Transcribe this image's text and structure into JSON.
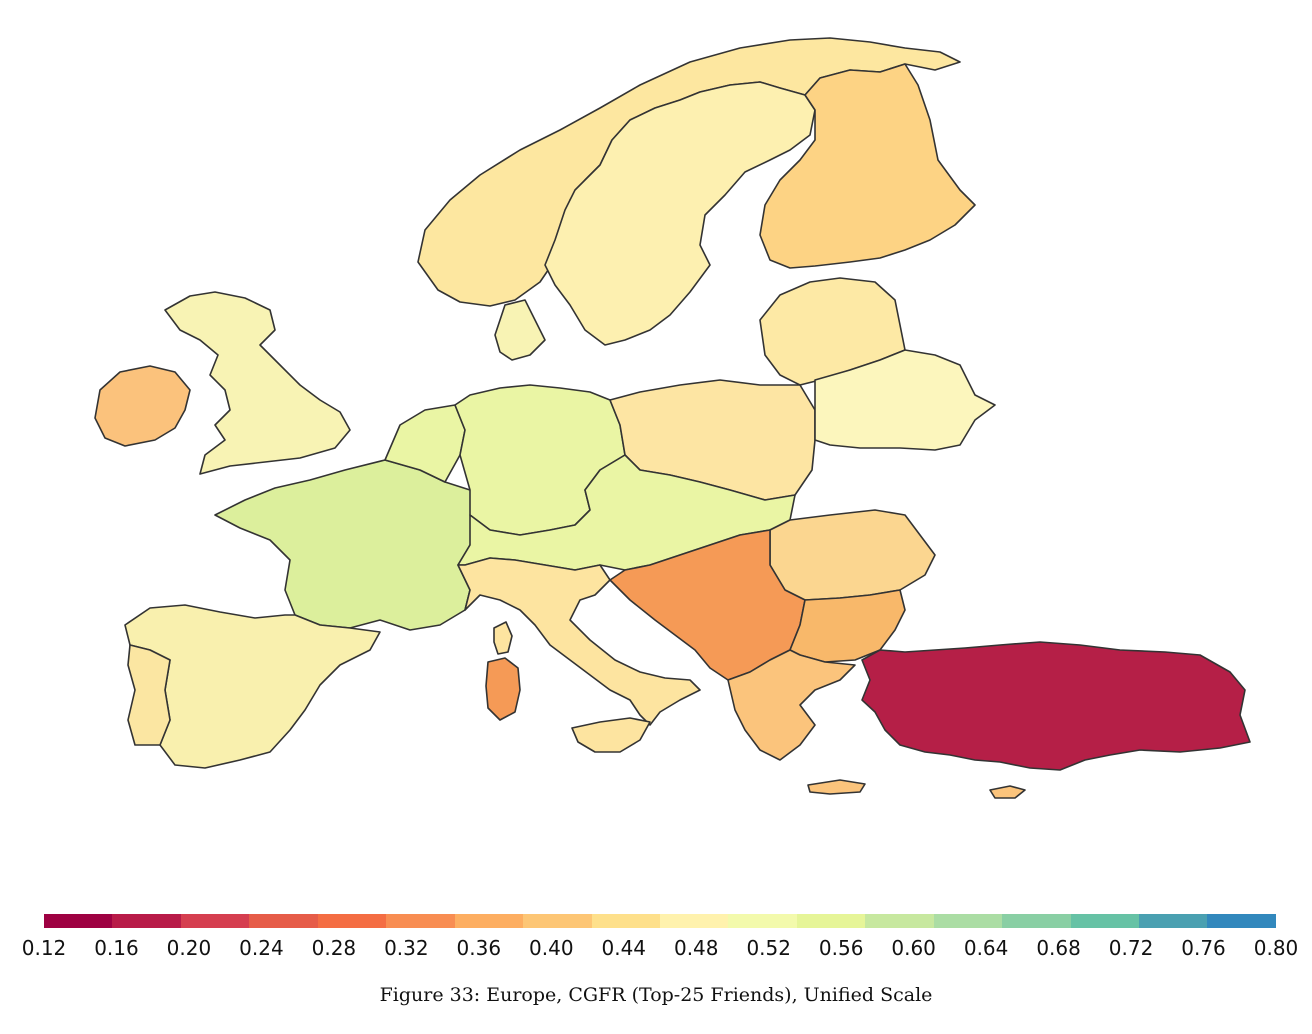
{
  "caption": "Figure 33: Europe, CGFR (Top-25 Friends), Unified Scale",
  "colorbar": {
    "ticks": [
      "0.12",
      "0.16",
      "0.20",
      "0.24",
      "0.28",
      "0.32",
      "0.36",
      "0.40",
      "0.44",
      "0.48",
      "0.52",
      "0.56",
      "0.60",
      "0.64",
      "0.68",
      "0.72",
      "0.76",
      "0.80"
    ],
    "min": 0.12,
    "max": 0.8,
    "colors": [
      "#9e0142",
      "#b81b48",
      "#d53e4f",
      "#e65c48",
      "#f46d43",
      "#f88d52",
      "#fdae61",
      "#fdc675",
      "#fee08b",
      "#fff2ad",
      "#f3faac",
      "#e6f598",
      "#c7e89f",
      "#abdda4",
      "#89cfa4",
      "#66c2a5",
      "#4aa0b1",
      "#3288bd"
    ]
  },
  "regions": [
    {
      "name": "Norway",
      "value": 0.46,
      "color": "#fde7a0"
    },
    {
      "name": "Sweden",
      "value": 0.48,
      "color": "#fdf0b0"
    },
    {
      "name": "Finland",
      "value": 0.41,
      "color": "#fdd384"
    },
    {
      "name": "Iceland-free Ireland",
      "value": 0.4,
      "color": "#fbc27c"
    },
    {
      "name": "United Kingdom",
      "value": 0.5,
      "color": "#f8f3b4"
    },
    {
      "name": "France",
      "value": 0.57,
      "color": "#dcef9c"
    },
    {
      "name": "Spain",
      "value": 0.49,
      "color": "#f9f0ae"
    },
    {
      "name": "Portugal",
      "value": 0.46,
      "color": "#fbe6a2"
    },
    {
      "name": "Germany",
      "value": 0.54,
      "color": "#eaf5a4"
    },
    {
      "name": "Italy",
      "value": 0.46,
      "color": "#fde4a0"
    },
    {
      "name": "Poland",
      "value": 0.46,
      "color": "#fde5a3"
    },
    {
      "name": "Baltics",
      "value": 0.47,
      "color": "#fde9a5"
    },
    {
      "name": "Belarus",
      "value": 0.5,
      "color": "#fcf6bd"
    },
    {
      "name": "Romania",
      "value": 0.43,
      "color": "#fbd690"
    },
    {
      "name": "Bulgaria",
      "value": 0.38,
      "color": "#f8b86a"
    },
    {
      "name": "Balkans",
      "value": 0.32,
      "color": "#f59a56"
    },
    {
      "name": "Greece",
      "value": 0.4,
      "color": "#fbc47c"
    },
    {
      "name": "Turkey",
      "value": 0.16,
      "color": "#b51f47"
    }
  ]
}
